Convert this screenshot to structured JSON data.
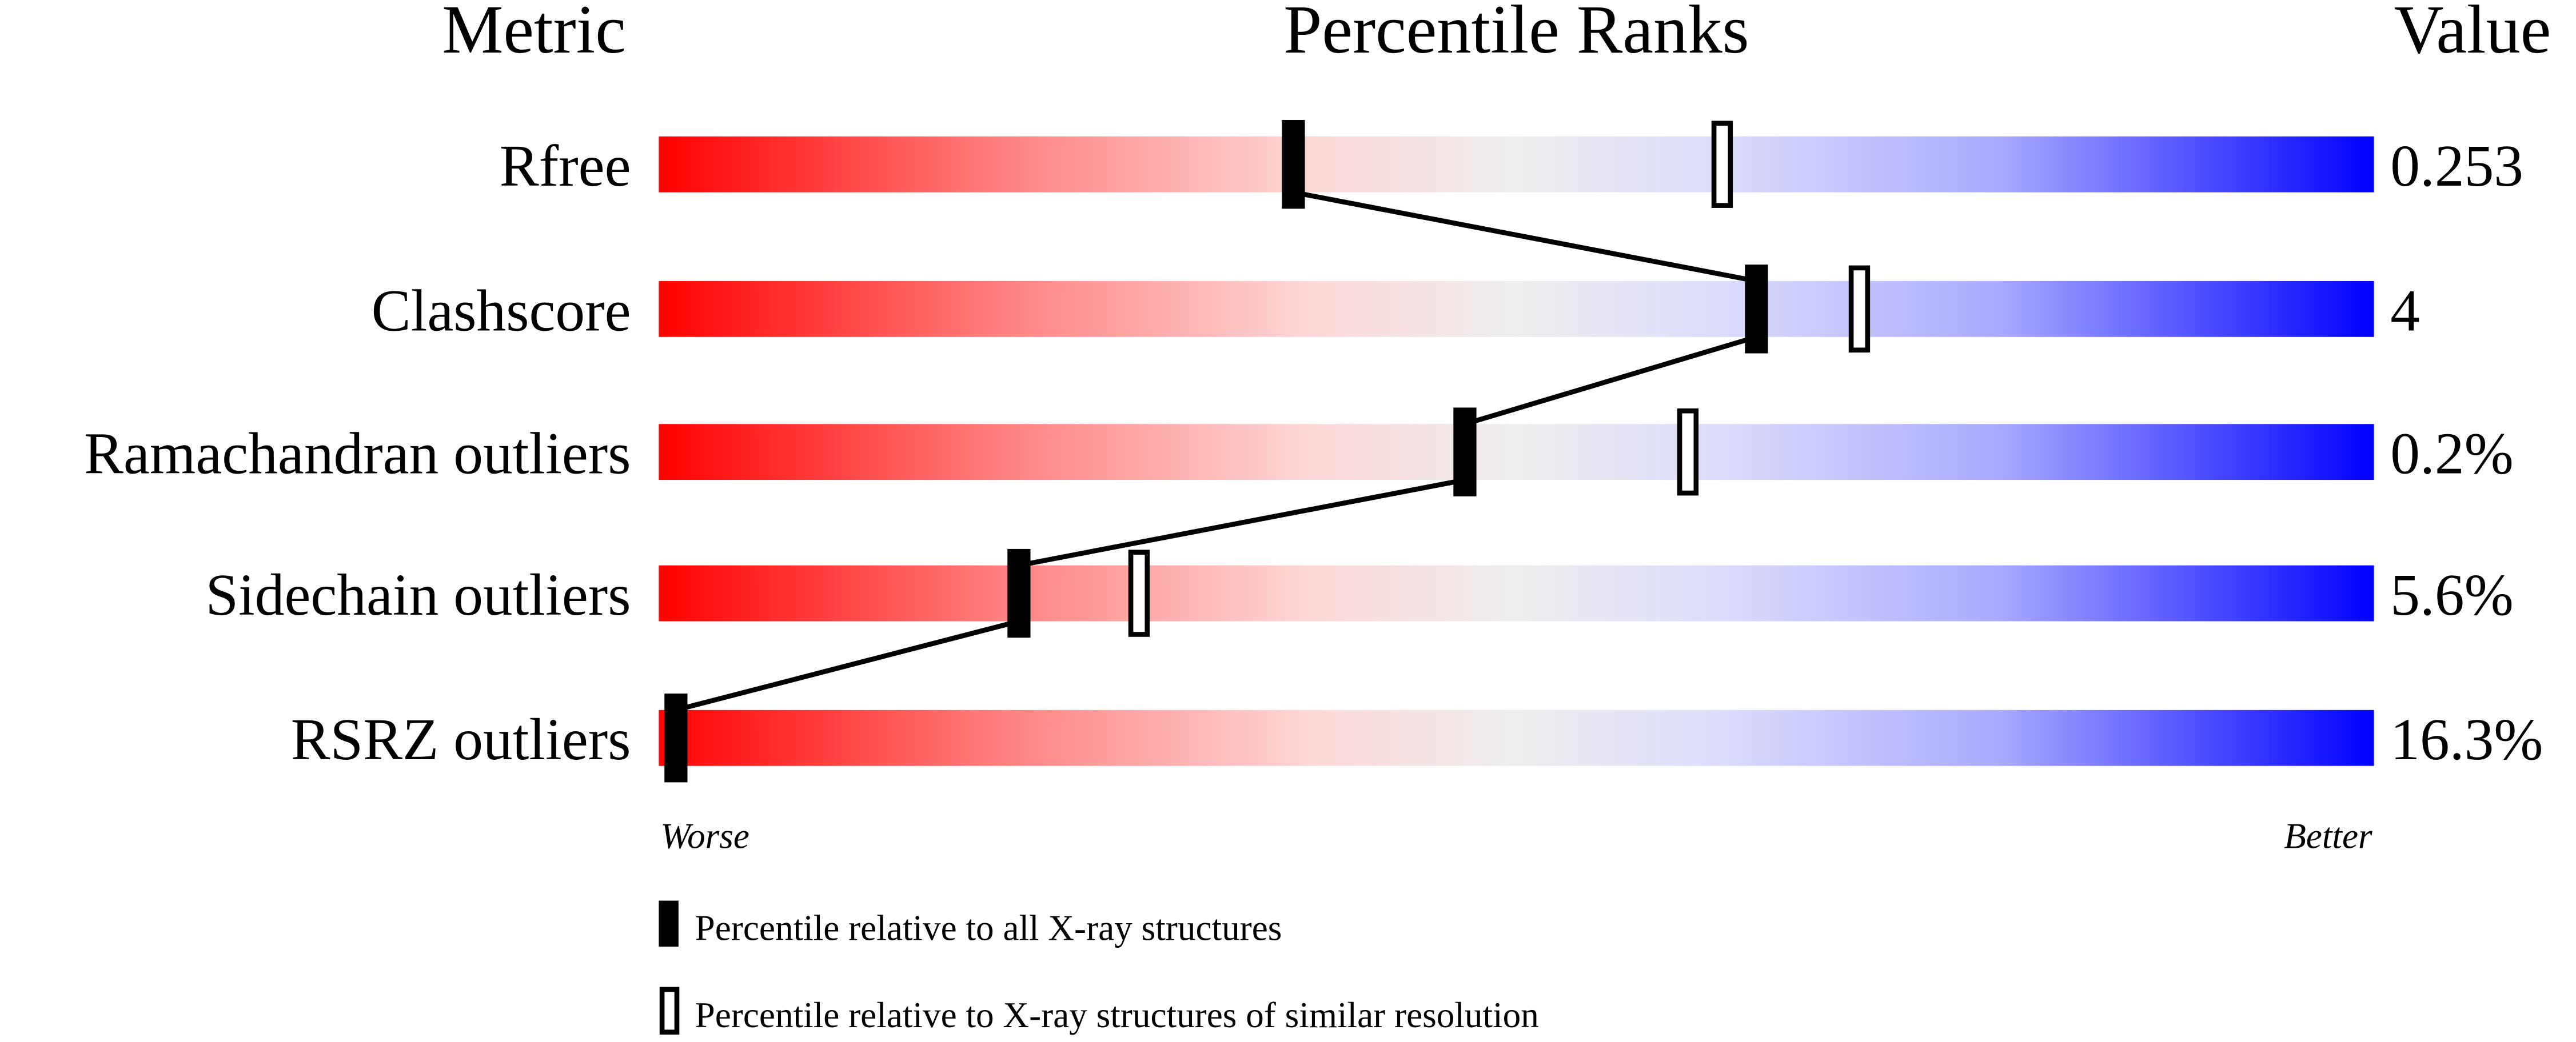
{
  "chart_data": {
    "type": "bar",
    "headers": {
      "metric": "Metric",
      "ranks": "Percentile Ranks",
      "value": "Value"
    },
    "categories": [
      "Rfree",
      "Clashscore",
      "Ramachandran outliers",
      "Sidechain outliers",
      "RSRZ outliers"
    ],
    "values": [
      "0.253",
      "4",
      "0.2%",
      "5.6%",
      "16.3%"
    ],
    "series": [
      {
        "name": "Percentile relative to all X-ray structures",
        "marker": "filled",
        "values": [
          37,
          64,
          47,
          21,
          1
        ]
      },
      {
        "name": "Percentile relative to X-ray structures of similar resolution",
        "marker": "hollow",
        "values": [
          62,
          70,
          60,
          28,
          null
        ]
      }
    ],
    "xlim": [
      0,
      100
    ],
    "axis_ends": {
      "left": "Worse",
      "right": "Better"
    },
    "colors": {
      "worse": "#ff0000",
      "middle": "#eeeeee",
      "better": "#0000ff",
      "marker": "#000000"
    }
  }
}
